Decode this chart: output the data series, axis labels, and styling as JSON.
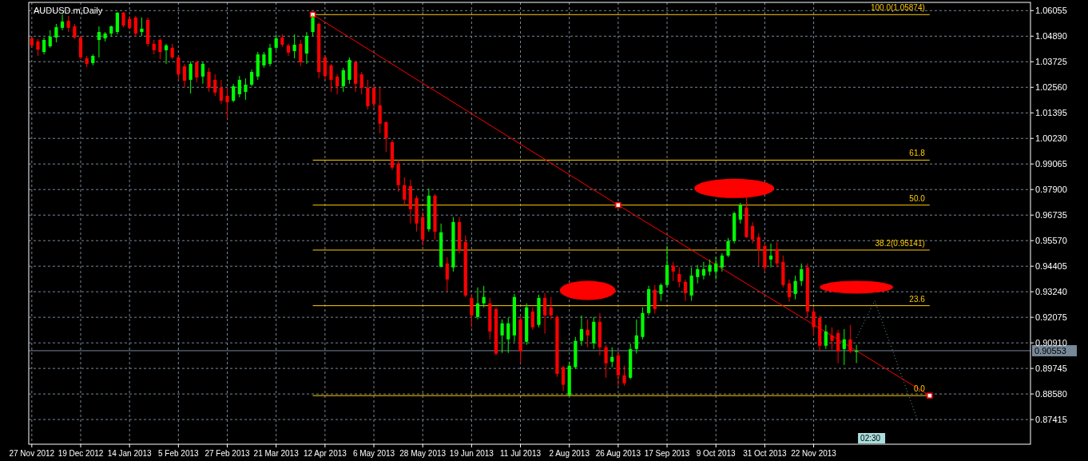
{
  "chart_data": {
    "type": "candlestick",
    "title": "AUDUSD.m,Daily",
    "annotations": [
      "02:30",
      {
        "text": "100.0(1.05874)",
        "y": 1.05874
      },
      {
        "text": "61.8",
        "y": 0.9924
      },
      {
        "text": "50.0",
        "y": 0.9719
      },
      {
        "text": "38.2(0.95141)",
        "y": 0.95141
      },
      {
        "text": "23.6",
        "y": 0.92605
      },
      {
        "text": "0.0",
        "y": 0.88506
      }
    ],
    "categories": [
      "27 Nov 2012",
      null,
      null,
      null,
      null,
      null,
      null,
      null,
      "19 Dec 2012",
      null,
      null,
      null,
      null,
      null,
      null,
      null,
      "14 Jan 2013",
      null,
      null,
      null,
      null,
      null,
      null,
      null,
      "5 Feb 2013",
      null,
      null,
      null,
      null,
      null,
      null,
      null,
      "27 Feb 2013",
      null,
      null,
      null,
      null,
      null,
      null,
      null,
      "21 Mar 2013",
      null,
      null,
      null,
      null,
      null,
      null,
      null,
      "12 Apr 2013",
      null,
      null,
      null,
      null,
      null,
      null,
      null,
      "6 May 2013",
      null,
      null,
      null,
      null,
      null,
      null,
      null,
      "28 May 2013",
      null,
      null,
      null,
      null,
      null,
      null,
      null,
      "19 Jun 2013",
      null,
      null,
      null,
      null,
      null,
      null,
      null,
      "11 Jul 2013",
      null,
      null,
      null,
      null,
      null,
      null,
      null,
      "2 Aug 2013",
      null,
      null,
      null,
      null,
      null,
      null,
      null,
      "26 Aug 2013",
      null,
      null,
      null,
      null,
      null,
      null,
      null,
      "17 Sep 2013",
      null,
      null,
      null,
      null,
      null,
      null,
      null,
      "9 Oct 2013",
      null,
      null,
      null,
      null,
      null,
      null,
      null,
      "31 Oct 2013",
      null,
      null,
      null,
      null,
      null,
      null,
      null,
      "22 Nov 2013",
      null,
      null,
      null,
      null,
      null,
      null,
      null,
      null,
      null,
      null,
      null,
      null,
      null,
      null,
      null,
      null,
      null,
      null,
      null,
      null,
      null,
      null,
      null,
      null,
      null,
      null,
      null,
      null,
      null,
      null,
      null,
      null,
      null,
      null,
      null
    ],
    "ohlc": [
      [
        1.0479,
        1.0483,
        1.0436,
        1.0447
      ],
      [
        1.0465,
        1.0476,
        1.0399,
        1.0428
      ],
      [
        1.0417,
        1.0483,
        1.0406,
        1.0472
      ],
      [
        1.0443,
        1.0516,
        1.0436,
        1.0487
      ],
      [
        1.0483,
        1.0545,
        1.0461,
        1.053
      ],
      [
        1.0527,
        1.0588,
        1.0516,
        1.0556
      ],
      [
        1.0559,
        1.0581,
        1.0508,
        1.0527
      ],
      [
        1.0534,
        1.0545,
        1.0476,
        1.0483
      ],
      [
        1.0483,
        1.049,
        1.0385,
        1.0392
      ],
      [
        1.0388,
        1.0399,
        1.0348,
        1.0363
      ],
      [
        1.0366,
        1.0406,
        1.0356,
        1.0399
      ],
      [
        1.0472,
        1.0534,
        1.0392,
        1.0508
      ],
      [
        1.0479,
        1.0508,
        1.0465,
        1.0501
      ],
      [
        1.0501,
        1.0537,
        1.0487,
        1.0534
      ],
      [
        1.0508,
        1.0599,
        1.0497,
        1.0596
      ],
      [
        1.0596,
        1.0599,
        1.053,
        1.0537
      ],
      [
        1.0567,
        1.0581,
        1.0519,
        1.0527
      ],
      [
        1.0574,
        1.0581,
        1.0487,
        1.0501
      ],
      [
        1.0508,
        1.0574,
        1.049,
        1.0523
      ],
      [
        1.0563,
        1.0574,
        1.0443,
        1.0454
      ],
      [
        1.0454,
        1.0472,
        1.0406,
        1.0425
      ],
      [
        1.0472,
        1.0479,
        1.0385,
        1.0417
      ],
      [
        1.0425,
        1.0454,
        1.0363,
        1.0447
      ],
      [
        1.0436,
        1.0454,
        1.0385,
        1.0392
      ],
      [
        1.0392,
        1.0399,
        1.029,
        1.0315
      ],
      [
        1.0352,
        1.0363,
        1.0254,
        1.0286
      ],
      [
        1.029,
        1.0374,
        1.0228,
        1.0363
      ],
      [
        1.037,
        1.0377,
        1.0279,
        1.0301
      ],
      [
        1.0305,
        1.037,
        1.0272,
        1.0363
      ],
      [
        1.0326,
        1.0345,
        1.0235,
        1.0254
      ],
      [
        1.029,
        1.0315,
        1.0217,
        1.0232
      ],
      [
        1.0254,
        1.029,
        1.0181,
        1.0195
      ],
      [
        1.0217,
        1.0254,
        1.0115,
        1.0188
      ],
      [
        1.0195,
        1.0272,
        1.0188,
        1.0261
      ],
      [
        1.0224,
        1.0308,
        1.021,
        1.029
      ],
      [
        1.0235,
        1.0297,
        1.0199,
        1.0268
      ],
      [
        1.0268,
        1.0337,
        1.0261,
        1.0326
      ],
      [
        1.0305,
        1.0417,
        1.029,
        1.0406
      ],
      [
        1.0356,
        1.0417,
        1.0345,
        1.0406
      ],
      [
        1.0363,
        1.0454,
        1.0352,
        1.0436
      ],
      [
        1.0436,
        1.0497,
        1.0425,
        1.0479
      ],
      [
        1.0483,
        1.0497,
        1.0439,
        1.045
      ],
      [
        1.0447,
        1.0454,
        1.0399,
        1.0414
      ],
      [
        1.0421,
        1.0497,
        1.0388,
        1.045
      ],
      [
        1.0454,
        1.0472,
        1.0352,
        1.037
      ],
      [
        1.041,
        1.0508,
        1.0363,
        1.049
      ],
      [
        1.0508,
        1.0587,
        1.049,
        1.0574
      ],
      [
        1.0545,
        1.0552,
        1.0297,
        1.0326
      ],
      [
        1.0392,
        1.0399,
        1.029,
        1.0308
      ],
      [
        1.0356,
        1.0363,
        1.0235,
        1.029
      ],
      [
        1.0305,
        1.0315,
        1.0224,
        1.0261
      ],
      [
        1.0261,
        1.0345,
        1.0235,
        1.0334
      ],
      [
        1.029,
        1.0392,
        1.0272,
        1.0381
      ],
      [
        1.037,
        1.0377,
        1.0235,
        1.0272
      ],
      [
        1.0315,
        1.0326,
        1.0224,
        1.0254
      ],
      [
        1.0254,
        1.029,
        1.0155,
        1.017
      ],
      [
        1.0254,
        1.0261,
        1.0159,
        1.0181
      ],
      [
        1.0174,
        1.0254,
        1.0046,
        1.009
      ],
      [
        1.0097,
        1.0101,
        0.9962,
        1.0024
      ],
      [
        1.0006,
        1.0017,
        0.9879,
        0.989
      ],
      [
        0.9908,
        0.9926,
        0.978,
        0.981
      ],
      [
        0.981,
        0.9846,
        0.9715,
        0.9744
      ],
      [
        0.9806,
        0.9835,
        0.9635,
        0.97
      ],
      [
        0.9751,
        0.9762,
        0.9598,
        0.9635
      ],
      [
        0.9664,
        0.9689,
        0.9533,
        0.9562
      ],
      [
        0.9609,
        0.9795,
        0.9598,
        0.9762
      ],
      [
        0.9762,
        0.9769,
        0.9562,
        0.9598
      ],
      [
        0.9438,
        0.9635,
        0.9435,
        0.9595
      ],
      [
        0.9453,
        0.9482,
        0.9325,
        0.938
      ],
      [
        0.9435,
        0.9664,
        0.9416,
        0.9642
      ],
      [
        0.9642,
        0.9664,
        0.9497,
        0.9515
      ],
      [
        0.9551,
        0.958,
        0.93,
        0.9307
      ],
      [
        0.9296,
        0.9314,
        0.9162,
        0.9216
      ],
      [
        0.9209,
        0.9344,
        0.9198,
        0.9271
      ],
      [
        0.9271,
        0.9351,
        0.9253,
        0.93
      ],
      [
        0.9271,
        0.9296,
        0.9107,
        0.9143
      ],
      [
        0.9245,
        0.9253,
        0.9034,
        0.9042
      ],
      [
        0.9125,
        0.9198,
        0.9045,
        0.918
      ],
      [
        0.9107,
        0.9205,
        0.9045,
        0.918
      ],
      [
        0.9125,
        0.9314,
        0.9096,
        0.93
      ],
      [
        0.9198,
        0.9216,
        0.8998,
        0.9052
      ],
      [
        0.9096,
        0.9271,
        0.9082,
        0.9253
      ],
      [
        0.9234,
        0.9253,
        0.9151,
        0.9162
      ],
      [
        0.9173,
        0.9311,
        0.9162,
        0.9296
      ],
      [
        0.9296,
        0.9318,
        0.9133,
        0.9216
      ],
      [
        0.9253,
        0.93,
        0.9198,
        0.9216
      ],
      [
        0.9209,
        0.9216,
        0.8936,
        0.895
      ],
      [
        0.898,
        0.8987,
        0.887,
        0.89
      ],
      [
        0.8852,
        0.9005,
        0.8851,
        0.8987
      ],
      [
        0.898,
        0.9118,
        0.8972,
        0.91
      ],
      [
        0.91,
        0.9216,
        0.9078,
        0.9154
      ],
      [
        0.9151,
        0.9198,
        0.9071,
        0.9125
      ],
      [
        0.9089,
        0.9209,
        0.9063,
        0.9187
      ],
      [
        0.9187,
        0.9227,
        0.9034,
        0.9071
      ],
      [
        0.9071,
        0.9082,
        0.8932,
        0.8998
      ],
      [
        0.9005,
        0.9071,
        0.898,
        0.9027
      ],
      [
        0.9034,
        0.9052,
        0.8896,
        0.8943
      ],
      [
        0.8943,
        0.8987,
        0.8896,
        0.8907
      ],
      [
        0.8932,
        0.9089,
        0.8925,
        0.9063
      ],
      [
        0.9063,
        0.9198,
        0.9042,
        0.9125
      ],
      [
        0.9118,
        0.9253,
        0.9107,
        0.9227
      ],
      [
        0.9227,
        0.9351,
        0.9216,
        0.9336
      ],
      [
        0.9333,
        0.9355,
        0.9224,
        0.9245
      ],
      [
        0.9314,
        0.9362,
        0.9282,
        0.9355
      ],
      [
        0.9355,
        0.9533,
        0.9344,
        0.9446
      ],
      [
        0.9442,
        0.946,
        0.9373,
        0.9416
      ],
      [
        0.9405,
        0.9435,
        0.9344,
        0.9369
      ],
      [
        0.9369,
        0.938,
        0.9282,
        0.9318
      ],
      [
        0.9307,
        0.9435,
        0.9282,
        0.9398
      ],
      [
        0.9391,
        0.9446,
        0.9362,
        0.9427
      ],
      [
        0.9398,
        0.946,
        0.938,
        0.9427
      ],
      [
        0.9416,
        0.9471,
        0.9398,
        0.9446
      ],
      [
        0.9416,
        0.9482,
        0.938,
        0.9453
      ],
      [
        0.9435,
        0.95,
        0.9416,
        0.9489
      ],
      [
        0.9489,
        0.9569,
        0.9482,
        0.9555
      ],
      [
        0.9555,
        0.9689,
        0.9544,
        0.9682
      ],
      [
        0.9653,
        0.9729,
        0.9635,
        0.9719
      ],
      [
        0.9708,
        0.9755,
        0.9569,
        0.9573
      ],
      [
        0.9624,
        0.9642,
        0.9544,
        0.9562
      ],
      [
        0.9573,
        0.9591,
        0.9442,
        0.9515
      ],
      [
        0.9533,
        0.9544,
        0.9416,
        0.9435
      ],
      [
        0.9471,
        0.9544,
        0.9435,
        0.9489
      ],
      [
        0.9518,
        0.9551,
        0.9435,
        0.9453
      ],
      [
        0.946,
        0.9489,
        0.9344,
        0.9355
      ],
      [
        0.9362,
        0.938,
        0.9278,
        0.93
      ],
      [
        0.9314,
        0.9398,
        0.9289,
        0.9373
      ],
      [
        0.9373,
        0.9453,
        0.9351,
        0.9427
      ],
      [
        0.9435,
        0.9453,
        0.9205,
        0.9234
      ],
      [
        0.9234,
        0.9253,
        0.9125,
        0.9162
      ],
      [
        0.9205,
        0.9216,
        0.9052,
        0.9078
      ],
      [
        0.9078,
        0.9173,
        0.9063,
        0.9143
      ],
      [
        0.9125,
        0.9162,
        0.906,
        0.91
      ],
      [
        0.9136,
        0.9151,
        0.8998,
        0.9052
      ],
      [
        0.9063,
        0.9154,
        0.899,
        0.9107
      ],
      [
        0.9107,
        0.9173,
        0.9045,
        0.9052
      ],
      [
        0.905,
        0.9082,
        0.8999,
        0.9055
      ],
      null,
      null,
      null,
      null,
      null,
      null,
      null,
      null,
      null,
      null,
      null,
      null,
      null,
      null,
      null,
      null,
      null,
      null,
      null,
      null,
      null,
      null,
      null,
      null,
      null,
      null,
      null,
      null
    ],
    "colors": [
      "#ff0000",
      "#ff0000",
      "#00ff00",
      "#00ff00",
      "#00ff00",
      "#00ff00",
      "#ff0000",
      "#ff0000",
      "#ff0000",
      "#ff0000",
      "#00ff00",
      "#00ff00",
      "#00ff00",
      "#00ff00",
      "#00ff00",
      "#ff0000",
      "#ff0000",
      "#ff0000",
      "#00ff00",
      "#ff0000",
      "#ff0000",
      "#ff0000",
      "#00ff00",
      "#ff0000",
      "#ff0000",
      "#ff0000",
      "#00ff00",
      "#ff0000",
      "#00ff00",
      "#ff0000",
      "#ff0000",
      "#ff0000",
      "#ff0000",
      "#00ff00",
      "#00ff00",
      "#00ff00",
      "#00ff00",
      "#00ff00",
      "#00ff00",
      "#00ff00",
      "#00ff00",
      "#ff0000",
      "#ff0000",
      "#00ff00",
      "#ff0000",
      "#00ff00",
      "#00ff00",
      "#ff0000",
      "#ff0000",
      "#ff0000",
      "#ff0000",
      "#00ff00",
      "#00ff00",
      "#ff0000",
      "#ff0000",
      "#ff0000",
      "#ff0000",
      "#ff0000",
      "#ff0000",
      "#ff0000",
      "#ff0000",
      "#ff0000",
      "#ff0000",
      "#ff0000",
      "#ff0000",
      "#00ff00",
      "#ff0000",
      "#00ff00",
      "#ff0000",
      "#00ff00",
      "#ff0000",
      "#ff0000",
      "#ff0000",
      "#00ff00",
      "#00ff00",
      "#ff0000",
      "#ff0000",
      "#00ff00",
      "#00ff00",
      "#00ff00",
      "#ff0000",
      "#00ff00",
      "#ff0000",
      "#00ff00",
      "#ff0000",
      "#ff0000",
      "#ff0000",
      "#ff0000",
      "#00ff00",
      "#00ff00",
      "#00ff00",
      "#ff0000",
      "#00ff00",
      "#ff0000",
      "#ff0000",
      "#00ff00",
      "#ff0000",
      "#ff0000",
      "#00ff00",
      "#00ff00",
      "#00ff00",
      "#00ff00",
      "#ff0000",
      "#00ff00",
      "#00ff00",
      "#ff0000",
      "#ff0000",
      "#ff0000",
      "#00ff00",
      "#00ff00",
      "#00ff00",
      "#00ff00",
      "#00ff00",
      "#00ff00",
      "#00ff00",
      "#00ff00",
      "#00ff00",
      "#ff0000",
      "#ff0000",
      "#ff0000",
      "#ff0000",
      "#00ff00",
      "#ff0000",
      "#ff0000",
      "#ff0000",
      "#00ff00",
      "#00ff00",
      "#ff0000",
      "#ff0000",
      "#ff0000",
      "#00ff00",
      "#ff0000",
      "#ff0000",
      "#00ff00",
      "#ff0000",
      "#00ff00",
      null,
      null,
      null,
      null,
      null,
      null,
      null,
      null,
      null,
      null,
      null,
      null,
      null,
      null,
      null,
      null,
      null,
      null,
      null,
      null,
      null,
      null,
      null,
      null,
      null,
      null,
      null,
      null
    ],
    "series": [
      {
        "type": "line",
        "color": "#ff0000",
        "marker": "square",
        "values": [
          null,
          null,
          null,
          null,
          null,
          null,
          null,
          null,
          null,
          null,
          null,
          null,
          null,
          null,
          null,
          null,
          null,
          null,
          null,
          null,
          null,
          null,
          null,
          null,
          null,
          null,
          null,
          null,
          null,
          null,
          null,
          null,
          null,
          null,
          null,
          null,
          null,
          null,
          null,
          null,
          null,
          null,
          null,
          null,
          null,
          null,
          1.05874,
          null,
          null,
          null,
          null,
          null,
          null,
          null,
          null,
          null,
          null,
          null,
          null,
          null,
          null,
          null,
          null,
          null,
          null,
          null,
          null,
          null,
          null,
          null,
          null,
          null,
          null,
          null,
          null,
          null,
          null,
          null,
          null,
          null,
          null,
          null,
          null,
          null,
          null,
          null,
          null,
          null,
          null,
          null,
          null,
          null,
          null,
          null,
          null,
          null,
          0.9719,
          null,
          null,
          null,
          null,
          null,
          null,
          null,
          null,
          null,
          null,
          null,
          null,
          null,
          null,
          null,
          null,
          null,
          null,
          null,
          null,
          null,
          null,
          null,
          null,
          null,
          null,
          null,
          null,
          null,
          null,
          null,
          null,
          null,
          null,
          null,
          null,
          null,
          null,
          null,
          null,
          null,
          null,
          null,
          null,
          null,
          null,
          null,
          null,
          null,
          null,
          0.88506,
          null,
          null,
          null,
          null,
          null,
          null,
          null,
          null,
          null,
          null,
          null,
          null,
          null,
          null,
          null,
          null
        ]
      },
      {
        "type": "line",
        "color": "#6a9a9a",
        "line_style": "dotted",
        "values": [
          null,
          null,
          null,
          null,
          null,
          null,
          null,
          null,
          null,
          null,
          null,
          null,
          null,
          null,
          null,
          null,
          null,
          null,
          null,
          null,
          null,
          null,
          null,
          null,
          null,
          null,
          null,
          null,
          null,
          null,
          null,
          null,
          null,
          null,
          null,
          null,
          null,
          null,
          null,
          null,
          null,
          null,
          null,
          null,
          null,
          null,
          null,
          null,
          null,
          null,
          null,
          null,
          null,
          null,
          null,
          null,
          null,
          null,
          null,
          null,
          null,
          null,
          null,
          null,
          null,
          null,
          null,
          null,
          null,
          null,
          null,
          null,
          null,
          null,
          null,
          null,
          null,
          null,
          null,
          null,
          null,
          null,
          null,
          null,
          null,
          null,
          null,
          null,
          null,
          null,
          null,
          null,
          null,
          null,
          null,
          null,
          null,
          null,
          null,
          null,
          null,
          null,
          null,
          null,
          null,
          null,
          null,
          null,
          null,
          null,
          null,
          null,
          null,
          null,
          null,
          null,
          null,
          null,
          null,
          null,
          null,
          null,
          null,
          null,
          null,
          null,
          null,
          null,
          null,
          null,
          null,
          null,
          null,
          null,
          null,
          0.9114,
          null,
          null,
          0.9283,
          null,
          null,
          null,
          null,
          null,
          null,
          0.8739,
          null,
          null,
          null,
          null,
          null,
          null,
          null,
          null,
          null,
          null,
          null,
          null,
          null,
          null,
          null,
          null,
          null,
          null
        ]
      }
    ],
    "ref_lines": [
      {
        "axis": "y",
        "value": 1.05874,
        "color": "#ffcc00"
      },
      {
        "axis": "y",
        "value": 0.9924,
        "color": "#ffcc00"
      },
      {
        "axis": "y",
        "value": 0.9719,
        "color": "#ffcc00"
      },
      {
        "axis": "y",
        "value": 0.95141,
        "color": "#ffcc00"
      },
      {
        "axis": "y",
        "value": 0.92605,
        "color": "#ffcc00"
      },
      {
        "axis": "y",
        "value": 0.88506,
        "color": "#ffcc00"
      },
      {
        "axis": "y",
        "value": 0.90553,
        "label": "0.90553",
        "color": "#778899"
      }
    ],
    "ylim": [
      0.8629,
      1.0643
    ],
    "yticks": [
      1.06055,
      {
        "value": 1.0489,
        "label": "1.04890"
      },
      1.03725,
      {
        "value": 1.0256,
        "label": "1.02560"
      },
      1.01395,
      {
        "value": 1.0023,
        "label": "1.00230"
      },
      0.99065,
      {
        "value": 0.979,
        "label": "0.97900"
      },
      0.96735,
      {
        "value": 0.9557,
        "label": "0.95570"
      },
      0.94405,
      {
        "value": 0.9324,
        "label": "0.93240"
      },
      0.92075,
      {
        "value": 0.9091,
        "label": "0.90910"
      },
      0.89745,
      {
        "value": 0.8858,
        "label": "0.88580"
      },
      0.87415
    ],
    "grid": true
  }
}
